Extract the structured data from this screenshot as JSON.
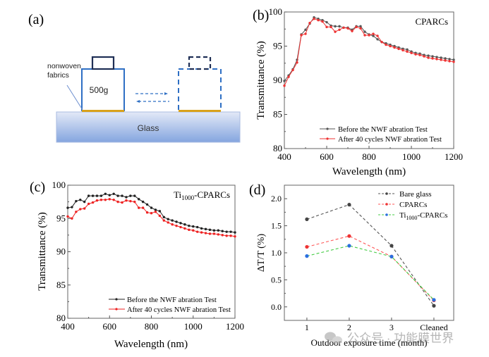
{
  "panel_labels": {
    "a": "(a)",
    "b": "(b)",
    "c": "(c)",
    "d": "(d)"
  },
  "schematic": {
    "fabric_label_line1": "nonwoven",
    "fabric_label_line2": "fabrics",
    "weight_label": "500g",
    "substrate_label": "Glass",
    "colors": {
      "weight_outline": "#2e6fc4",
      "weight_handle": "#1f2f55",
      "fabric": "#d9a21b",
      "glass_top": "#dfe6f6",
      "glass_bottom": "#86a7e0",
      "arrow": "#2e6fc4"
    }
  },
  "watermark": {
    "text": "公众号 · 功能膜世界",
    "icon": "wechat-icon"
  },
  "chart_data": [
    {
      "id": "b",
      "type": "line",
      "title": "",
      "annotation": "CPARCs",
      "xlabel": "Wavelength (nm)",
      "ylabel": "Transmittance (%)",
      "xlim": [
        400,
        1200
      ],
      "ylim": [
        80,
        100
      ],
      "xticks": [
        400,
        600,
        800,
        1000,
        1200
      ],
      "yticks": [
        80,
        85,
        90,
        95,
        100
      ],
      "grid": false,
      "legend_position": "bottom-right",
      "x": [
        400,
        420,
        440,
        460,
        480,
        500,
        520,
        540,
        560,
        580,
        600,
        620,
        640,
        660,
        680,
        700,
        720,
        740,
        760,
        780,
        800,
        820,
        840,
        860,
        880,
        900,
        920,
        940,
        960,
        980,
        1000,
        1020,
        1040,
        1060,
        1080,
        1100,
        1120,
        1140,
        1160,
        1180,
        1200
      ],
      "series": [
        {
          "name": "Before the NWF abration Test",
          "color": "#555555",
          "values": [
            89.9,
            90.7,
            91.6,
            93.0,
            96.7,
            97.4,
            98.3,
            99.2,
            99.0,
            98.8,
            98.5,
            98.0,
            97.9,
            97.9,
            97.7,
            97.7,
            97.4,
            97.9,
            97.9,
            97.1,
            96.7,
            96.5,
            96.0,
            95.6,
            95.4,
            95.2,
            95.0,
            94.8,
            94.6,
            94.5,
            94.2,
            94.0,
            93.9,
            93.7,
            93.6,
            93.5,
            93.4,
            93.3,
            93.2,
            93.1,
            93.0
          ]
        },
        {
          "name": "After 40 cycles NWF abration Test",
          "color": "#ee3333",
          "values": [
            89.2,
            90.5,
            91.5,
            92.6,
            96.6,
            96.8,
            98.4,
            99.0,
            98.8,
            98.6,
            97.8,
            97.8,
            97.1,
            97.4,
            97.7,
            97.6,
            97.2,
            97.8,
            97.6,
            96.6,
            96.6,
            96.8,
            96.5,
            95.6,
            95.2,
            95.0,
            94.8,
            94.6,
            94.4,
            94.2,
            94.0,
            93.8,
            93.7,
            93.5,
            93.3,
            93.2,
            93.1,
            93.0,
            92.9,
            92.8,
            92.7
          ]
        }
      ]
    },
    {
      "id": "c",
      "type": "line",
      "title": "",
      "annotation": {
        "main": "Ti",
        "sub": "1000",
        "rest": "-CPARCs"
      },
      "xlabel": "Wavelength (nm)",
      "ylabel": "Transmittance (%)",
      "xlim": [
        400,
        1200
      ],
      "ylim": [
        80,
        100
      ],
      "xticks": [
        400,
        600,
        800,
        1000,
        1200
      ],
      "yticks": [
        80,
        85,
        90,
        95,
        100
      ],
      "grid": false,
      "legend_position": "bottom-right",
      "x": [
        400,
        420,
        440,
        460,
        480,
        500,
        520,
        540,
        560,
        580,
        600,
        620,
        640,
        660,
        680,
        700,
        720,
        740,
        760,
        780,
        800,
        820,
        840,
        860,
        880,
        900,
        920,
        940,
        960,
        980,
        1000,
        1020,
        1040,
        1060,
        1080,
        1100,
        1120,
        1140,
        1160,
        1180,
        1200
      ],
      "series": [
        {
          "name": "Before the NWF abration Test",
          "color": "#222222",
          "values": [
            96.6,
            96.7,
            97.6,
            97.8,
            97.5,
            98.4,
            98.4,
            98.4,
            98.4,
            98.7,
            98.5,
            98.7,
            98.4,
            98.4,
            98.2,
            98.4,
            98.4,
            97.9,
            97.5,
            97.1,
            96.6,
            96.3,
            96.1,
            95.2,
            94.9,
            94.7,
            94.5,
            94.3,
            94.1,
            93.9,
            93.8,
            93.7,
            93.5,
            93.4,
            93.3,
            93.2,
            93.2,
            93.1,
            93.0,
            93.0,
            92.9
          ]
        },
        {
          "name": "After 40 cycles NWF abration Test",
          "color": "#ee2222",
          "values": [
            95.3,
            95.0,
            96.0,
            96.4,
            96.5,
            97.2,
            97.4,
            97.7,
            97.8,
            97.8,
            97.9,
            97.8,
            97.5,
            97.4,
            97.7,
            97.6,
            97.5,
            96.6,
            96.6,
            95.9,
            95.8,
            96.0,
            95.4,
            94.7,
            94.4,
            94.1,
            93.9,
            93.7,
            93.5,
            93.3,
            93.2,
            93.0,
            92.9,
            92.8,
            92.7,
            92.7,
            92.6,
            92.5,
            92.4,
            92.4,
            92.3
          ]
        }
      ]
    },
    {
      "id": "d",
      "type": "line",
      "title": "",
      "xlabel": "Outdoor exposure time (month)",
      "ylabel": "ΔT/T (%)",
      "categories": [
        "1",
        "2",
        "3",
        "Cleaned"
      ],
      "ylim": [
        -0.25,
        2.25
      ],
      "yticks": [
        0.0,
        0.5,
        1.0,
        1.5,
        2.0
      ],
      "ytick_labels": [
        "0.0",
        "0.5",
        "1.0",
        "1.5",
        "2.0"
      ],
      "grid": false,
      "legend_position": "top-right",
      "line_style": "dashed",
      "series": [
        {
          "name": "Bare glass",
          "line_color": "#555555",
          "marker_color": "#444444",
          "values": [
            1.62,
            1.89,
            1.13,
            0.02
          ]
        },
        {
          "name": "CPARCs",
          "line_color": "#ff5555",
          "marker_color": "#ee3333",
          "values": [
            1.11,
            1.31,
            0.93,
            0.12
          ]
        },
        {
          "name": {
            "main": "Ti",
            "sub": "1000",
            "rest": "-CPARCs"
          },
          "line_color": "#44cc44",
          "marker_color": "#2a6fe0",
          "values": [
            0.94,
            1.13,
            0.93,
            0.13
          ]
        }
      ]
    }
  ]
}
